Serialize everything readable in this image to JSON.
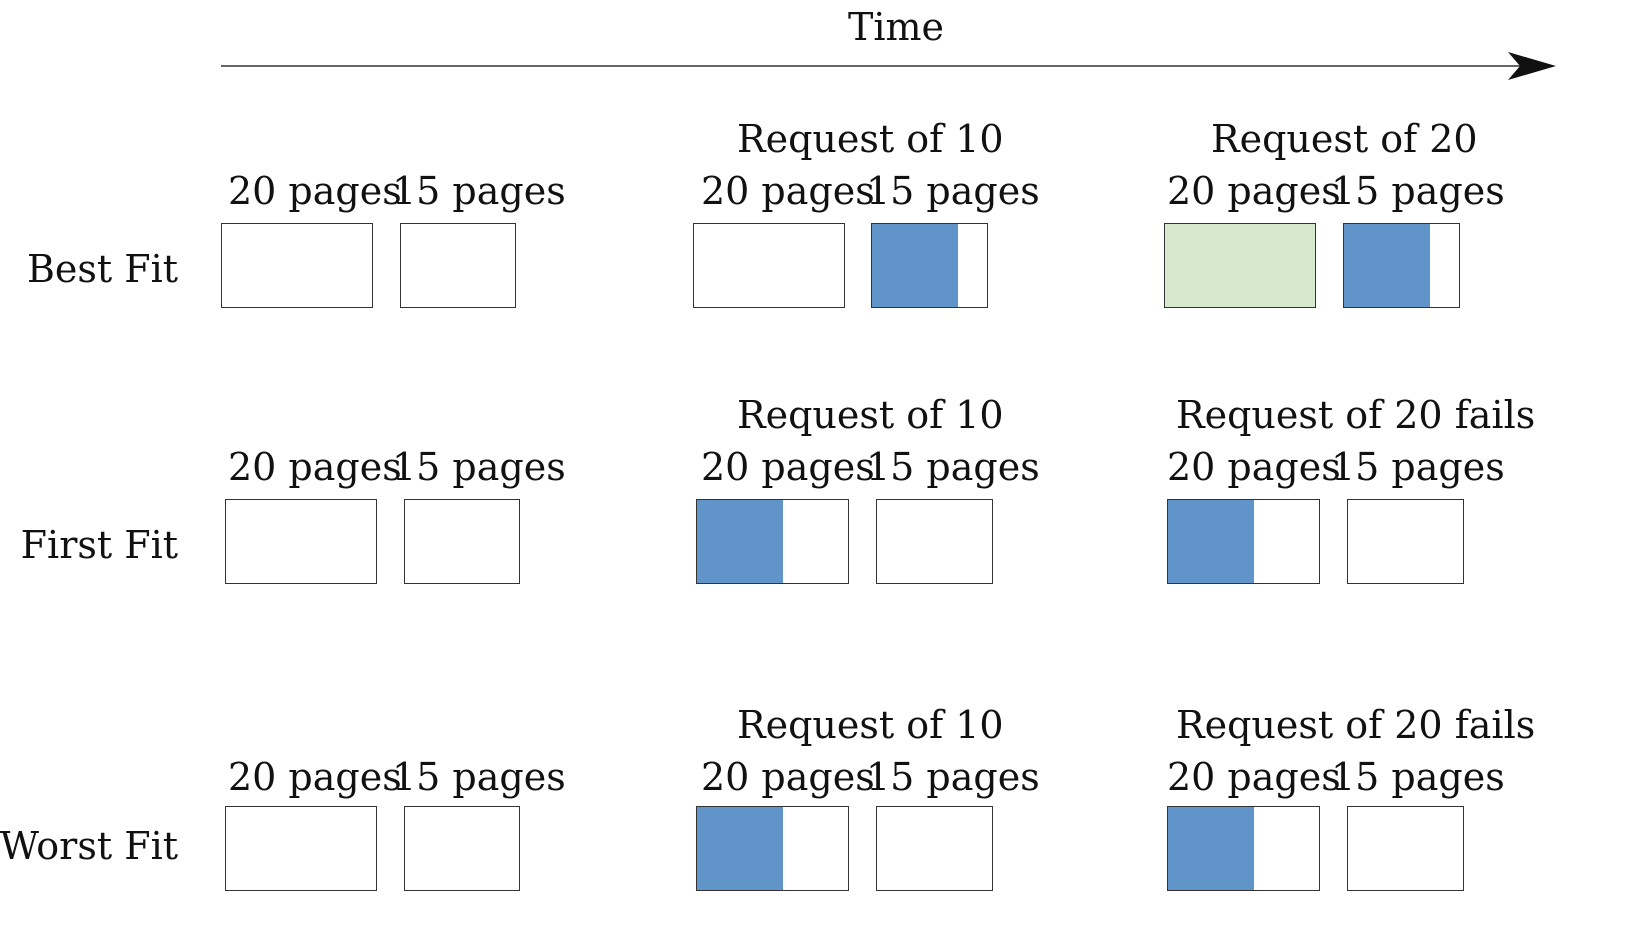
{
  "time_label": "Time",
  "rows": [
    {
      "label": "Best Fit",
      "stages": [
        {
          "request": "",
          "blocks": [
            {
              "label": "20 pages",
              "fill": 0,
              "color": "none"
            },
            {
              "label": "15 pages",
              "fill": 0,
              "color": "none"
            }
          ]
        },
        {
          "request": "Request of 10",
          "blocks": [
            {
              "label": "20 pages",
              "fill": 0,
              "color": "none"
            },
            {
              "label": "15 pages",
              "fill": 0.75,
              "color": "#6195c9"
            }
          ]
        },
        {
          "request": "Request of 20",
          "blocks": [
            {
              "label": "20 pages",
              "fill": 1,
              "color": "#d7e8cf"
            },
            {
              "label": "15 pages",
              "fill": 0.75,
              "color": "#6195c9"
            }
          ]
        }
      ]
    },
    {
      "label": "First Fit",
      "stages": [
        {
          "request": "",
          "blocks": [
            {
              "label": "20 pages",
              "fill": 0,
              "color": "none"
            },
            {
              "label": "15 pages",
              "fill": 0,
              "color": "none"
            }
          ]
        },
        {
          "request": "Request of 10",
          "blocks": [
            {
              "label": "20 pages",
              "fill": 0.57,
              "color": "#6195c9"
            },
            {
              "label": "15 pages",
              "fill": 0,
              "color": "none"
            }
          ]
        },
        {
          "request": "Request of 20 fails",
          "blocks": [
            {
              "label": "20 pages",
              "fill": 0.57,
              "color": "#6195c9"
            },
            {
              "label": "15 pages",
              "fill": 0,
              "color": "none"
            }
          ]
        }
      ]
    },
    {
      "label": "Worst Fit",
      "stages": [
        {
          "request": "",
          "blocks": [
            {
              "label": "20 pages",
              "fill": 0,
              "color": "none"
            },
            {
              "label": "15 pages",
              "fill": 0,
              "color": "none"
            }
          ]
        },
        {
          "request": "Request of 10",
          "blocks": [
            {
              "label": "20 pages",
              "fill": 0.57,
              "color": "#6195c9"
            },
            {
              "label": "15 pages",
              "fill": 0,
              "color": "none"
            }
          ]
        },
        {
          "request": "Request of 20 fails",
          "blocks": [
            {
              "label": "20 pages",
              "fill": 0.57,
              "color": "#6195c9"
            },
            {
              "label": "15 pages",
              "fill": 0,
              "color": "none"
            }
          ]
        }
      ]
    }
  ]
}
